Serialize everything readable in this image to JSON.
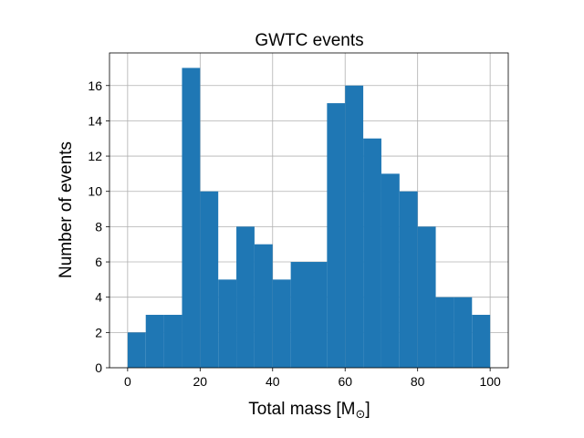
{
  "chart_data": {
    "type": "bar",
    "title": "GWTC events",
    "xlabel": "Total mass [M",
    "xlabel_sub": "⊙",
    "xlabel_suffix": "]",
    "ylabel": "Number of events",
    "xlim": [
      -5,
      105
    ],
    "ylim": [
      0,
      17.85
    ],
    "xticks": [
      0,
      20,
      40,
      60,
      80,
      100
    ],
    "yticks": [
      0,
      2,
      4,
      6,
      8,
      10,
      12,
      14,
      16
    ],
    "grid": true,
    "bin_width": 5,
    "bin_edges": [
      0,
      5,
      10,
      15,
      20,
      25,
      30,
      35,
      40,
      45,
      50,
      55,
      60,
      65,
      70,
      75,
      80,
      85,
      90,
      95,
      100
    ],
    "values": [
      2,
      3,
      3,
      17,
      10,
      5,
      8,
      7,
      5,
      6,
      6,
      15,
      16,
      13,
      11,
      10,
      8,
      4,
      4,
      3
    ],
    "bar_color": "#1f77b4"
  }
}
